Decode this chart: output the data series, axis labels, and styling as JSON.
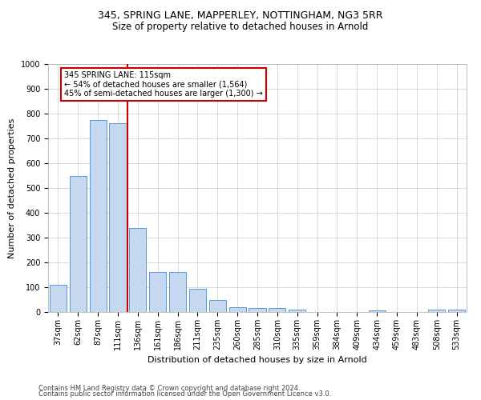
{
  "title1": "345, SPRING LANE, MAPPERLEY, NOTTINGHAM, NG3 5RR",
  "title2": "Size of property relative to detached houses in Arnold",
  "xlabel": "Distribution of detached houses by size in Arnold",
  "ylabel": "Number of detached properties",
  "categories": [
    "37sqm",
    "62sqm",
    "87sqm",
    "111sqm",
    "136sqm",
    "161sqm",
    "186sqm",
    "211sqm",
    "235sqm",
    "260sqm",
    "285sqm",
    "310sqm",
    "335sqm",
    "359sqm",
    "384sqm",
    "409sqm",
    "434sqm",
    "459sqm",
    "483sqm",
    "508sqm",
    "533sqm"
  ],
  "values": [
    110,
    550,
    775,
    760,
    340,
    162,
    162,
    95,
    50,
    20,
    15,
    15,
    10,
    0,
    0,
    0,
    7,
    0,
    0,
    10,
    10
  ],
  "bar_color": "#c5d8f0",
  "bar_edge_color": "#5a9ad4",
  "vline_x": 3.5,
  "vline_color": "#cc0000",
  "annotation_line1": "345 SPRING LANE: 115sqm",
  "annotation_line2": "← 54% of detached houses are smaller (1,564)",
  "annotation_line3": "45% of semi-detached houses are larger (1,300) →",
  "annotation_box_color": "#ffffff",
  "annotation_box_edge_color": "#cc0000",
  "ylim": [
    0,
    1000
  ],
  "yticks": [
    0,
    100,
    200,
    300,
    400,
    500,
    600,
    700,
    800,
    900,
    1000
  ],
  "footer1": "Contains HM Land Registry data © Crown copyright and database right 2024.",
  "footer2": "Contains public sector information licensed under the Open Government Licence v3.0.",
  "bg_color": "#ffffff",
  "grid_color": "#cccccc",
  "title1_fontsize": 9,
  "title2_fontsize": 8.5,
  "xlabel_fontsize": 8,
  "ylabel_fontsize": 8,
  "tick_fontsize": 7,
  "annotation_fontsize": 7,
  "footer_fontsize": 6
}
